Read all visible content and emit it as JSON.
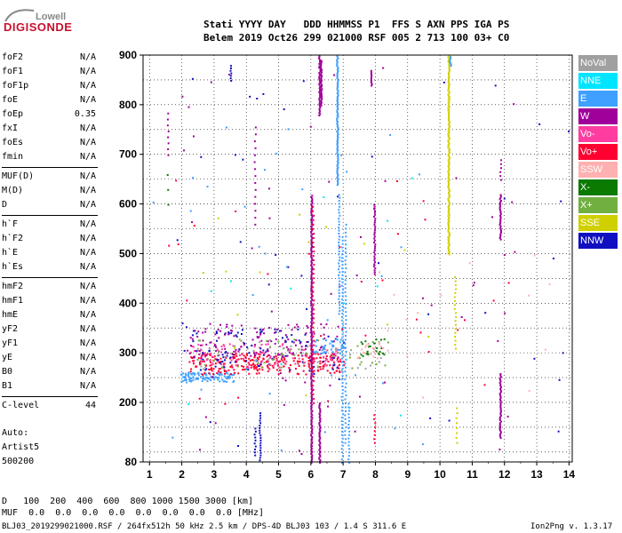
{
  "logo": {
    "top": "Lowell",
    "main": "DIGISONDE"
  },
  "header": {
    "line1": "Stati YYYY DAY   DDD HHMMSS P1  FFS S AXN PPS IGA PS",
    "line2": "Belem 2019 Oct26 299 021000 RSF 005 2 713 100 03+ C0"
  },
  "params_groups": [
    [
      {
        "k": "foF2",
        "v": "N/A"
      },
      {
        "k": "foF1",
        "v": "N/A"
      },
      {
        "k": "foF1p",
        "v": "N/A"
      },
      {
        "k": "foE",
        "v": "N/A"
      },
      {
        "k": "foEp",
        "v": "0.35"
      },
      {
        "k": "fxI",
        "v": "N/A"
      },
      {
        "k": "foEs",
        "v": "N/A"
      },
      {
        "k": "fmin",
        "v": "N/A"
      }
    ],
    [
      {
        "k": "MUF(D)",
        "v": "N/A"
      },
      {
        "k": "M(D)",
        "v": "N/A"
      },
      {
        "k": "D",
        "v": "N/A"
      }
    ],
    [
      {
        "k": "h`F",
        "v": "N/A"
      },
      {
        "k": "h`F2",
        "v": "N/A"
      },
      {
        "k": "h`E",
        "v": "N/A"
      },
      {
        "k": "h`Es",
        "v": "N/A"
      }
    ],
    [
      {
        "k": "hmF2",
        "v": "N/A"
      },
      {
        "k": "hmF1",
        "v": "N/A"
      },
      {
        "k": "hmE",
        "v": "N/A"
      },
      {
        "k": "yF2",
        "v": "N/A"
      },
      {
        "k": "yF1",
        "v": "N/A"
      },
      {
        "k": "yE",
        "v": "N/A"
      },
      {
        "k": "B0",
        "v": "N/A"
      },
      {
        "k": "B1",
        "v": "N/A"
      }
    ],
    [
      {
        "k": "C-level",
        "v": "44"
      }
    ]
  ],
  "auto": {
    "line1": "Auto:",
    "line2": "Artist5",
    "line3": "500200"
  },
  "legend": [
    {
      "name": "NoVal",
      "color": "#a0a0a0"
    },
    {
      "name": "NNE",
      "color": "#00e5ff"
    },
    {
      "name": "E",
      "color": "#3fa0ff"
    },
    {
      "name": "W",
      "color": "#a0009a"
    },
    {
      "name": "Vo-",
      "color": "#ff3ca0"
    },
    {
      "name": "Vo+",
      "color": "#ff0030"
    },
    {
      "name": "SSW",
      "color": "#ffb0b0"
    },
    {
      "name": "X-",
      "color": "#0a7a00"
    },
    {
      "name": "X+",
      "color": "#70b040"
    },
    {
      "name": "SSE",
      "color": "#d0d000"
    },
    {
      "name": "NNW",
      "color": "#1010c0"
    }
  ],
  "footer": {
    "d_line": "D   100  200  400  600  800 1000 1500 3000 [km]",
    "muf_line": "MUF  0.0  0.0  0.0  0.0  0.0  0.0  0.0  0.0 [MHz]",
    "file_line": "BLJ03_2019299021000.RSF / 264fx512h 50 kHz 2.5 km / DPS-4D BLJ03 103 / 1.4 S 311.6 E",
    "version": "Ion2Png v. 1.3.17"
  },
  "chart_data": {
    "type": "scatter",
    "title": "",
    "xlabel": "",
    "ylabel": "",
    "xlim": [
      0.8,
      14.1
    ],
    "ylim": [
      80,
      900
    ],
    "xticks": [
      1,
      2,
      3,
      4,
      5,
      6,
      7,
      8,
      9,
      10,
      11,
      12,
      13,
      14
    ],
    "yticks": [
      80,
      200,
      300,
      400,
      500,
      600,
      700,
      800,
      900
    ],
    "grid": true,
    "clusters": [
      {
        "name": "F-trace E",
        "color": "#3fa0ff",
        "x": [
          1.95,
          3.6
        ],
        "y": [
          242,
          262
        ],
        "n": 110
      },
      {
        "name": "F-trace Vo+",
        "color": "#ff0030",
        "x": [
          2.2,
          7.0
        ],
        "y": [
          258,
          300
        ],
        "n": 260
      },
      {
        "name": "F-trace Vo-",
        "color": "#ff3ca0",
        "x": [
          2.2,
          7.0
        ],
        "y": [
          270,
          320
        ],
        "n": 110
      },
      {
        "name": "F-trace W",
        "color": "#a0009a",
        "x": [
          2.2,
          6.9
        ],
        "y": [
          290,
          360
        ],
        "n": 130
      },
      {
        "name": "F-trace NNW",
        "color": "#1010c0",
        "x": [
          2.3,
          6.8
        ],
        "y": [
          265,
          350
        ],
        "n": 90
      },
      {
        "name": "F-trace X+",
        "color": "#70b040",
        "x": [
          2.3,
          8.4
        ],
        "y": [
          270,
          330
        ],
        "n": 45
      },
      {
        "name": "F-trace NoVal",
        "color": "#a0a0a0",
        "x": [
          2.3,
          8.3
        ],
        "y": [
          265,
          330
        ],
        "n": 45
      },
      {
        "name": "F-trace E high",
        "color": "#3fa0ff",
        "x": [
          6.0,
          7.0
        ],
        "y": [
          300,
          330
        ],
        "n": 40
      },
      {
        "name": "X- 7.5-8.3",
        "color": "#0a7a00",
        "x": [
          7.5,
          8.3
        ],
        "y": [
          295,
          330
        ],
        "n": 25
      },
      {
        "name": "SSW 7.5-8.4",
        "color": "#ffb0b0",
        "x": [
          7.4,
          8.4
        ],
        "y": [
          290,
          325
        ],
        "n": 20
      },
      {
        "name": "scatter W",
        "color": "#a0009a",
        "x": [
          1.5,
          12.4
        ],
        "y": [
          85,
          880
        ],
        "n": 55
      },
      {
        "name": "scatter NNW",
        "color": "#1010c0",
        "x": [
          1.5,
          14.0
        ],
        "y": [
          110,
          890
        ],
        "n": 45
      },
      {
        "name": "scatter E",
        "color": "#3fa0ff",
        "x": [
          1.0,
          10.5
        ],
        "y": [
          100,
          800
        ],
        "n": 35
      },
      {
        "name": "scatter Vo+",
        "color": "#ff0030",
        "x": [
          1.0,
          12.2
        ],
        "y": [
          180,
          690
        ],
        "n": 30
      },
      {
        "name": "scatter NNE",
        "color": "#00e5ff",
        "x": [
          2.0,
          10.0
        ],
        "y": [
          150,
          700
        ],
        "n": 12
      },
      {
        "name": "scatter SSE",
        "color": "#d0d000",
        "x": [
          2.5,
          10.6
        ],
        "y": [
          150,
          600
        ],
        "n": 14
      },
      {
        "name": "scatter SSW",
        "color": "#ffb0b0",
        "x": [
          8.0,
          13.8
        ],
        "y": [
          200,
          500
        ],
        "n": 14
      }
    ],
    "vlines": [
      {
        "x": 1.55,
        "y": [
          700,
          790
        ],
        "color": "#a0009a",
        "step": 12
      },
      {
        "x": 1.55,
        "y": [
          600,
          660
        ],
        "color": "#0a7a00",
        "step": 30
      },
      {
        "x": 3.5,
        "y": [
          850,
          880
        ],
        "color": "#1010c0",
        "step": 5
      },
      {
        "x": 4.25,
        "y": [
          560,
          760
        ],
        "color": "#a0009a",
        "step": 14
      },
      {
        "x": 4.25,
        "y": [
          95,
          150
        ],
        "color": "#1010c0",
        "step": 6
      },
      {
        "x": 4.4,
        "y": [
          85,
          180
        ],
        "color": "#1010c0",
        "step": 5
      },
      {
        "x": 6.0,
        "y": [
          80,
          620
        ],
        "color": "#a0009a",
        "step": 2.6
      },
      {
        "x": 6.05,
        "y": [
          200,
          600
        ],
        "color": "#ff0030",
        "step": 9
      },
      {
        "x": 6.25,
        "y": [
          80,
          200
        ],
        "color": "#a0009a",
        "step": 2.6
      },
      {
        "x": 6.25,
        "y": [
          780,
          900
        ],
        "color": "#a0009a",
        "step": 2.6
      },
      {
        "x": 6.3,
        "y": [
          800,
          890
        ],
        "color": "#a0009a",
        "step": 3
      },
      {
        "x": 6.8,
        "y": [
          640,
          900
        ],
        "color": "#3fa0ff",
        "step": 2.5
      },
      {
        "x": 6.85,
        "y": [
          380,
          620
        ],
        "color": "#3fa0ff",
        "step": 6
      },
      {
        "x": 6.95,
        "y": [
          80,
          540
        ],
        "color": "#3fa0ff",
        "step": 7
      },
      {
        "x": 7.05,
        "y": [
          120,
          560
        ],
        "color": "#3fa0ff",
        "step": 8
      },
      {
        "x": 7.15,
        "y": [
          80,
          200
        ],
        "color": "#3fa0ff",
        "step": 7
      },
      {
        "x": 7.85,
        "y": [
          840,
          870
        ],
        "color": "#a0009a",
        "step": 3
      },
      {
        "x": 7.95,
        "y": [
          460,
          600
        ],
        "color": "#a0009a",
        "step": 4
      },
      {
        "x": 7.95,
        "y": [
          120,
          180
        ],
        "color": "#ff0030",
        "step": 8
      },
      {
        "x": 10.25,
        "y": [
          500,
          900
        ],
        "color": "#d0d000",
        "step": 2.5
      },
      {
        "x": 10.3,
        "y": [
          880,
          900
        ],
        "color": "#3fa0ff",
        "step": 3
      },
      {
        "x": 10.45,
        "y": [
          310,
          460
        ],
        "color": "#d0d000",
        "step": 8
      },
      {
        "x": 10.5,
        "y": [
          120,
          190
        ],
        "color": "#d0d000",
        "step": 10
      },
      {
        "x": 11.85,
        "y": [
          530,
          620
        ],
        "color": "#a0009a",
        "step": 3
      },
      {
        "x": 11.85,
        "y": [
          650,
          690
        ],
        "color": "#a0009a",
        "step": 8
      },
      {
        "x": 11.85,
        "y": [
          130,
          260
        ],
        "color": "#a0009a",
        "step": 3
      }
    ]
  }
}
